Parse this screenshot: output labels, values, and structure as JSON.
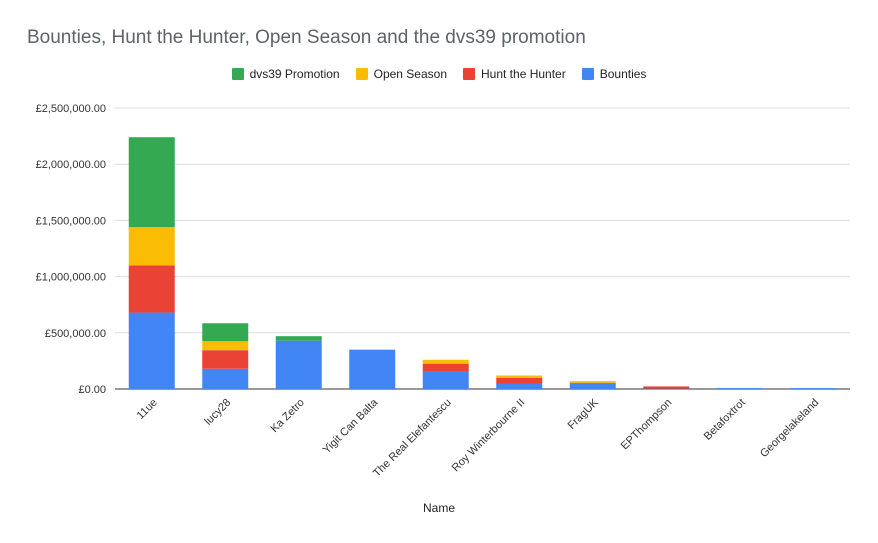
{
  "chart_data": {
    "type": "bar",
    "stacked": true,
    "title": "Bounties, Hunt the Hunter, Open Season and the dvs39 promotion",
    "xlabel": "Name",
    "ylabel": "",
    "ylim": [
      0,
      2500000
    ],
    "yticks": [
      "£0.00",
      "£500,000.00",
      "£1,000,000.00",
      "£1,500,000.00",
      "£2,000,000.00",
      "£2,500,000.00"
    ],
    "ytick_values": [
      0,
      500000,
      1000000,
      1500000,
      2000000,
      2500000
    ],
    "legend_position": "top",
    "grid": true,
    "categories": [
      "11ue",
      "lucy28",
      "Ka Zetro",
      "Yigit Can Balta",
      "The Real Elefantescu",
      "Roy Winterbourne II",
      "FragUK",
      "EPThompson",
      "Betafoxtrot",
      "Georgelakeland"
    ],
    "series": [
      {
        "name": "Bounties",
        "color": "#4285f4",
        "values": [
          680000,
          180000,
          430000,
          350000,
          160000,
          45000,
          50000,
          3000,
          8000,
          8000
        ]
      },
      {
        "name": "Hunt the Hunter",
        "color": "#ea4335",
        "values": [
          420000,
          165000,
          0,
          0,
          65000,
          55000,
          5000,
          20000,
          0,
          0
        ]
      },
      {
        "name": "Open Season",
        "color": "#fbbc04",
        "values": [
          340000,
          80000,
          0,
          0,
          35000,
          20000,
          15000,
          0,
          0,
          0
        ]
      },
      {
        "name": "dvs39 Promotion",
        "color": "#34a853",
        "values": [
          800000,
          160000,
          40000,
          0,
          0,
          0,
          0,
          0,
          0,
          0
        ]
      }
    ],
    "legend_order": [
      "dvs39 Promotion",
      "Open Season",
      "Hunt the Hunter",
      "Bounties"
    ]
  }
}
